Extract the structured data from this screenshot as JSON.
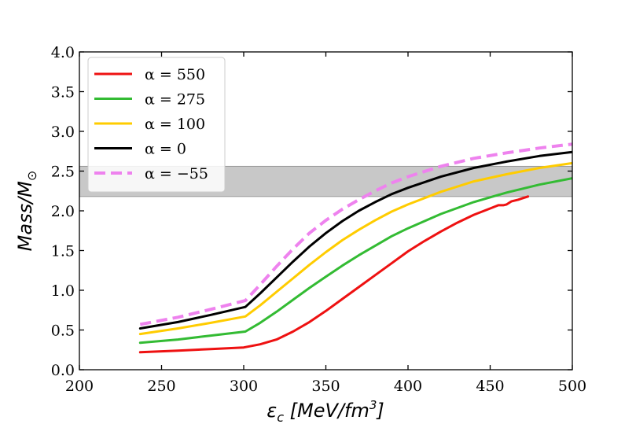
{
  "chart_data": {
    "type": "line",
    "xlabel_main": "ε",
    "xlabel_sub": "c",
    "xlabel_unit_pre": " [MeV/fm",
    "xlabel_unit_sup": "3",
    "xlabel_unit_post": "]",
    "ylabel_main": "Mass/M",
    "ylabel_sub": "⊙",
    "xlim": [
      200,
      500
    ],
    "ylim": [
      0.0,
      4.0
    ],
    "xticks": [
      200,
      250,
      300,
      350,
      400,
      450,
      500
    ],
    "yticks": [
      0.0,
      0.5,
      1.0,
      1.5,
      2.0,
      2.5,
      3.0,
      3.5,
      4.0
    ],
    "xtick_labels": [
      "200",
      "250",
      "300",
      "350",
      "400",
      "450",
      "500"
    ],
    "ytick_labels": [
      "0.0",
      "0.5",
      "1.0",
      "1.5",
      "2.0",
      "2.5",
      "3.0",
      "3.5",
      "4.0"
    ],
    "grid": false,
    "legend_position": "top-left",
    "band": {
      "y_from": 2.18,
      "y_to": 2.56,
      "color": "#c8c8c8"
    },
    "series": [
      {
        "name": "α = 550",
        "color": "#ee1111",
        "dash": false,
        "x": [
          237,
          260,
          280,
          300,
          310,
          320,
          330,
          340,
          350,
          360,
          370,
          380,
          390,
          400,
          410,
          420,
          430,
          440,
          450,
          455,
          458,
          460,
          463,
          467,
          470,
          473
        ],
        "y": [
          0.22,
          0.24,
          0.26,
          0.28,
          0.32,
          0.38,
          0.48,
          0.6,
          0.74,
          0.89,
          1.04,
          1.19,
          1.34,
          1.49,
          1.62,
          1.74,
          1.85,
          1.95,
          2.03,
          2.07,
          2.07,
          2.08,
          2.12,
          2.14,
          2.16,
          2.18
        ]
      },
      {
        "name": "α = 275",
        "color": "#33bb33",
        "dash": false,
        "x": [
          237,
          260,
          280,
          301,
          310,
          320,
          330,
          340,
          350,
          360,
          370,
          380,
          390,
          400,
          420,
          440,
          460,
          480,
          500
        ],
        "y": [
          0.34,
          0.38,
          0.43,
          0.48,
          0.59,
          0.73,
          0.88,
          1.03,
          1.17,
          1.31,
          1.44,
          1.56,
          1.68,
          1.78,
          1.96,
          2.11,
          2.23,
          2.33,
          2.41
        ]
      },
      {
        "name": "α = 100",
        "color": "#ffcc00",
        "dash": false,
        "x": [
          237,
          260,
          280,
          301,
          310,
          320,
          330,
          340,
          350,
          360,
          370,
          380,
          390,
          400,
          420,
          440,
          460,
          480,
          500
        ],
        "y": [
          0.45,
          0.52,
          0.59,
          0.67,
          0.81,
          0.98,
          1.15,
          1.32,
          1.48,
          1.63,
          1.76,
          1.88,
          1.99,
          2.08,
          2.24,
          2.37,
          2.46,
          2.54,
          2.6
        ]
      },
      {
        "name": "α = 0",
        "color": "#000000",
        "dash": false,
        "x": [
          237,
          260,
          280,
          301,
          310,
          320,
          330,
          340,
          350,
          360,
          370,
          380,
          390,
          400,
          420,
          440,
          460,
          480,
          500
        ],
        "y": [
          0.52,
          0.6,
          0.69,
          0.79,
          0.96,
          1.16,
          1.36,
          1.55,
          1.72,
          1.87,
          2.0,
          2.11,
          2.21,
          2.29,
          2.43,
          2.54,
          2.62,
          2.69,
          2.74
        ]
      },
      {
        "name": "α = −55",
        "color": "#ee82ee",
        "dash": true,
        "x": [
          237,
          260,
          280,
          301,
          310,
          320,
          330,
          340,
          350,
          360,
          370,
          380,
          390,
          400,
          420,
          440,
          460,
          480,
          500
        ],
        "y": [
          0.57,
          0.66,
          0.76,
          0.87,
          1.07,
          1.3,
          1.52,
          1.72,
          1.88,
          2.02,
          2.14,
          2.25,
          2.35,
          2.43,
          2.56,
          2.66,
          2.73,
          2.79,
          2.84
        ]
      }
    ]
  }
}
